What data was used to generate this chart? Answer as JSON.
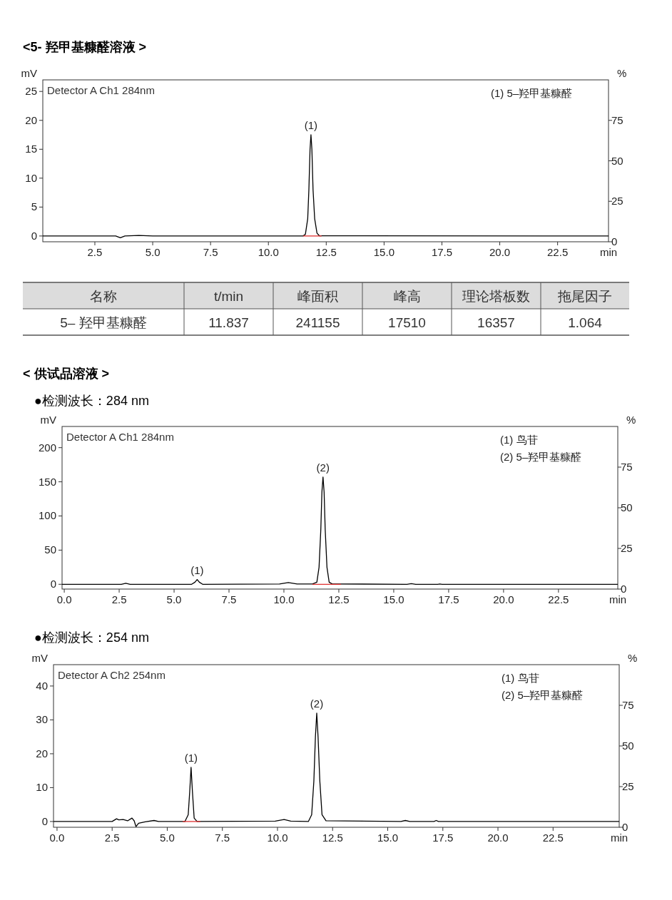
{
  "chart_data": [
    {
      "type": "line",
      "title": "<5- 羟甲基糠醛溶液 >",
      "xlabel": "min",
      "ylabel": "mV",
      "y2label": "%",
      "xlim": [
        0.25,
        24.7
      ],
      "ylim": [
        -1,
        27
      ],
      "y2lim": [
        0,
        100
      ],
      "xticks": [
        {
          "value": 2.5,
          "label": "2.5"
        },
        {
          "value": 5,
          "label": "5.0"
        },
        {
          "value": 7.5,
          "label": "7.5"
        },
        {
          "value": 10,
          "label": "10.0"
        },
        {
          "value": 12.5,
          "label": "12.5"
        },
        {
          "value": 15,
          "label": "15.0"
        },
        {
          "value": 17.5,
          "label": "17.5"
        },
        {
          "value": 20,
          "label": "20.0"
        },
        {
          "value": 22.5,
          "label": "22.5"
        }
      ],
      "yticks": [
        0,
        5,
        10,
        15,
        20,
        25
      ],
      "y2ticks": [
        0,
        25,
        50,
        75
      ],
      "series": [
        {
          "color": "#000000",
          "x": [
            0.25,
            3.4,
            3.6,
            3.8,
            4.4,
            5,
            11.5,
            11.6,
            11.7,
            11.75,
            11.8,
            11.84,
            11.88,
            11.93,
            12.0,
            12.1,
            12.2,
            24.7
          ],
          "values": [
            0,
            0,
            -0.3,
            0,
            0.1,
            0,
            0,
            0.3,
            3,
            8,
            15,
            17.5,
            15,
            8,
            3,
            0.5,
            0.05,
            0
          ]
        },
        {
          "color": "#e03030",
          "x": [
            11.5,
            12.3
          ],
          "values": [
            0,
            0
          ]
        }
      ],
      "annotations": [
        "Detector A Ch1 284nm",
        "(1) 5–羟甲基糠醛",
        {
          "text": "(1)",
          "x": 11.84,
          "y": 17.5
        }
      ]
    },
    {
      "type": "other",
      "annotations": [
        "名称",
        "t/min",
        "峰面积",
        "峰高",
        "理论塔板数",
        "拖尾因子",
        "5– 羟甲基糠醛",
        "11.837",
        "241155",
        "17510",
        "16357",
        "1.064"
      ]
    },
    {
      "type": "line",
      "title": "< 供试品溶液 >",
      "subtitle": "●检测波长：284 nm",
      "xlabel": "min",
      "ylabel": "mV",
      "y2label": "%",
      "xlim": [
        -0.1,
        25.2
      ],
      "ylim": [
        -7,
        231
      ],
      "y2lim": [
        0,
        100
      ],
      "xticks": [
        {
          "value": 0,
          "label": "0.0"
        },
        {
          "value": 2.5,
          "label": "2.5"
        },
        {
          "value": 5,
          "label": "5.0"
        },
        {
          "value": 7.5,
          "label": "7.5"
        },
        {
          "value": 10,
          "label": "10.0"
        },
        {
          "value": 12.5,
          "label": "12.5"
        },
        {
          "value": 15,
          "label": "15.0"
        },
        {
          "value": 17.5,
          "label": "17.5"
        },
        {
          "value": 20,
          "label": "20.0"
        },
        {
          "value": 22.5,
          "label": "22.5"
        }
      ],
      "yticks": [
        0,
        50,
        100,
        150,
        200
      ],
      "y2ticks": [
        0,
        25,
        50,
        75
      ],
      "series": [
        {
          "color": "#000000",
          "x": [
            -0.1,
            2.6,
            2.8,
            3.0,
            5.8,
            5.95,
            6.05,
            6.15,
            6.3,
            9.8,
            10.2,
            10.6,
            11.3,
            11.5,
            11.6,
            11.68,
            11.73,
            11.78,
            11.83,
            11.88,
            11.96,
            12.06,
            12.2,
            15.6,
            15.8,
            16.0,
            17.0,
            17.1,
            17.2,
            25.2
          ],
          "values": [
            0,
            0,
            1.5,
            0,
            0,
            3,
            7,
            3,
            0,
            0.5,
            2.5,
            0.5,
            0.5,
            3,
            25,
            80,
            135,
            157,
            135,
            80,
            25,
            3,
            0.5,
            0,
            1,
            0,
            0,
            0.5,
            0,
            0
          ]
        },
        {
          "color": "#e03030",
          "x": [
            11.3,
            12.6
          ],
          "values": [
            0,
            0
          ]
        }
      ],
      "annotations": [
        "Detector A Ch1 284nm",
        "(1) 鸟苷",
        "(2) 5–羟甲基糠醛",
        {
          "text": "(1)",
          "x": 6.05,
          "y": 7
        },
        {
          "text": "(2)",
          "x": 11.78,
          "y": 157
        }
      ]
    },
    {
      "type": "line",
      "subtitle": "●检测波长：254 nm",
      "xlabel": "min",
      "ylabel": "mV",
      "y2label": "%",
      "xlim": [
        -0.16,
        25.5
      ],
      "ylim": [
        -1.7,
        46.3
      ],
      "y2lim": [
        0,
        100
      ],
      "xticks": [
        {
          "value": 0,
          "label": "0.0"
        },
        {
          "value": 2.5,
          "label": "2.5"
        },
        {
          "value": 5,
          "label": "5.0"
        },
        {
          "value": 7.5,
          "label": "7.5"
        },
        {
          "value": 10,
          "label": "10.0"
        },
        {
          "value": 12.5,
          "label": "12.5"
        },
        {
          "value": 15,
          "label": "15.0"
        },
        {
          "value": 17.5,
          "label": "17.5"
        },
        {
          "value": 20,
          "label": "20.0"
        },
        {
          "value": 22.5,
          "label": "22.5"
        }
      ],
      "yticks": [
        0,
        10,
        20,
        30,
        40
      ],
      "y2ticks": [
        0,
        25,
        50,
        75
      ],
      "series": [
        {
          "color": "#000000",
          "x": [
            -0.16,
            2.5,
            2.7,
            2.8,
            3.0,
            3.2,
            3.4,
            3.5,
            3.58,
            3.7,
            4.0,
            4.4,
            4.6,
            5.8,
            5.95,
            6.02,
            6.08,
            6.14,
            6.22,
            6.35,
            9.9,
            10.3,
            10.6,
            11.4,
            11.55,
            11.65,
            11.72,
            11.78,
            11.84,
            11.92,
            12.02,
            12.2,
            15.6,
            15.8,
            16.0,
            17.1,
            17.2,
            17.3,
            25.5
          ],
          "values": [
            0,
            0,
            0.8,
            0.5,
            0.6,
            0.2,
            1.0,
            0.2,
            -1.5,
            -0.5,
            -0.1,
            0.3,
            0,
            0,
            2,
            9,
            16,
            9,
            1,
            0,
            0.1,
            0.6,
            0.1,
            0,
            2,
            12,
            25,
            32,
            25,
            12,
            2,
            0.2,
            0,
            0.3,
            0,
            0,
            0.3,
            0,
            0
          ]
        },
        {
          "color": "#e03030",
          "x": [
            5.7,
            6.5
          ],
          "values": [
            0,
            0
          ]
        }
      ],
      "annotations": [
        "Detector A Ch2 254nm",
        "(1) 鸟苷",
        "(2) 5–羟甲基糠醛",
        {
          "text": "(1)",
          "x": 6.08,
          "y": 16
        },
        {
          "text": "(2)",
          "x": 11.78,
          "y": 32
        }
      ]
    }
  ]
}
